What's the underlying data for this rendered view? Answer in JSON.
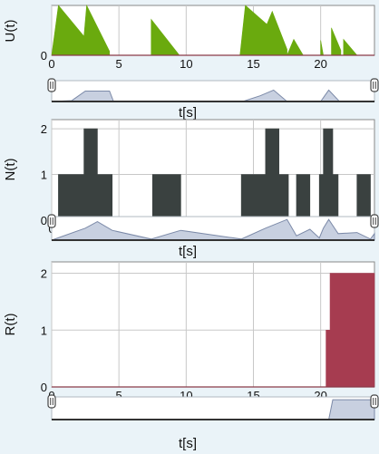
{
  "chart_data": [
    {
      "type": "area",
      "ylabel": "U(t)",
      "xlabel": "",
      "xlim": [
        0,
        24
      ],
      "ylim": [
        0,
        1
      ],
      "xticks": [
        "0",
        "5",
        "10",
        "15",
        "20"
      ],
      "yticks": [
        "0"
      ],
      "fill_color": "#6aaa0e",
      "series": [
        {
          "x": [
            0,
            0.5,
            2.4,
            2.4,
            2.6,
            4.3,
            4.3,
            7.4,
            7.4,
            9.5,
            9.5,
            14,
            14,
            14.4,
            16,
            16,
            16.4,
            17.5,
            17.5,
            18,
            18.7,
            18.7,
            20,
            20,
            20.2,
            20.8,
            20.8,
            21,
            21,
            21.5,
            21.5,
            21.7,
            21.7,
            22.7,
            22.7,
            24
          ],
          "y": [
            0,
            1,
            0.38,
            0.38,
            1,
            0.08,
            0,
            0,
            0.72,
            0,
            0,
            0,
            0,
            1,
            0.62,
            0.62,
            0.88,
            0.12,
            0,
            0.32,
            0,
            0,
            0,
            0.3,
            0,
            0,
            0.55,
            0.42,
            0.42,
            0.1,
            0,
            0,
            0.32,
            0,
            0,
            0
          ]
        }
      ]
    },
    {
      "type": "area",
      "ylabel": "N(t)",
      "xlabel": "",
      "xlim": [
        0,
        24
      ],
      "ylim": [
        0,
        2.2
      ],
      "xticks": [
        "0",
        "5",
        "10",
        "15",
        "20"
      ],
      "yticks": [
        "0",
        "1",
        "2"
      ],
      "fill_color": "#3a4140",
      "series": [
        {
          "x": [
            0.5,
            2.4,
            2.4,
            3.4,
            3.4,
            4.5,
            4.5,
            7.5,
            7.5,
            9.6,
            9.6,
            14.1,
            14.1,
            15.9,
            15.9,
            16.9,
            16.9,
            17.6,
            17.6,
            18.2,
            18.2,
            19.2,
            19.2,
            19.9,
            19.9,
            20.2,
            20.2,
            20.9,
            20.9,
            21.3,
            21.3,
            22.7,
            22.7,
            23.7,
            23.7,
            24
          ],
          "y": [
            1,
            1,
            2,
            2,
            1,
            1,
            0,
            0,
            1,
            1,
            0,
            0,
            1,
            1,
            2,
            2,
            1,
            1,
            0,
            0,
            1,
            1,
            0,
            0,
            1,
            1,
            2,
            2,
            1,
            1,
            0,
            0,
            1,
            1,
            0,
            0
          ]
        }
      ]
    },
    {
      "type": "area",
      "ylabel": "R(t)",
      "xlabel": "",
      "xlim": [
        0,
        24
      ],
      "ylim": [
        0,
        2.2
      ],
      "xticks": [
        "0",
        "5",
        "10",
        "15",
        "20"
      ],
      "yticks": [
        "0",
        "1",
        "2"
      ],
      "fill_color": "#a63c50",
      "series": [
        {
          "x": [
            0,
            20.4,
            20.4,
            20.7,
            20.7,
            24
          ],
          "y": [
            0,
            0,
            1,
            1,
            2,
            2
          ]
        }
      ]
    }
  ],
  "navigators": [
    {
      "xlabel": "t[s]",
      "x": [
        0,
        1.5,
        2.5,
        3.5,
        4.3,
        4.6,
        10,
        14.2,
        15.5,
        16.5,
        17.5,
        20,
        20.3,
        20.6,
        21.4,
        24
      ],
      "y": [
        0,
        0.05,
        0.55,
        0.55,
        0.55,
        0,
        0,
        0,
        0.3,
        0.6,
        0,
        0,
        0.3,
        0.6,
        0,
        0
      ]
    },
    {
      "xlabel": "t[s]",
      "x": [
        0,
        2.5,
        3.4,
        4.5,
        7.4,
        9.6,
        14.1,
        15.9,
        17.5,
        18.2,
        19.2,
        19.9,
        20.2,
        20.6,
        21.3,
        22.7,
        23.7,
        24
      ],
      "y": [
        0,
        0.55,
        0.85,
        0.45,
        0.05,
        0.45,
        0.05,
        0.55,
        0.95,
        0.2,
        0.5,
        0.1,
        0.55,
        0.95,
        0.3,
        0.35,
        0.05,
        0.3
      ]
    },
    {
      "xlabel": "t[s]",
      "x": [
        0,
        20.6,
        20.9,
        24
      ],
      "y": [
        0,
        0,
        0.95,
        0.95
      ]
    }
  ]
}
